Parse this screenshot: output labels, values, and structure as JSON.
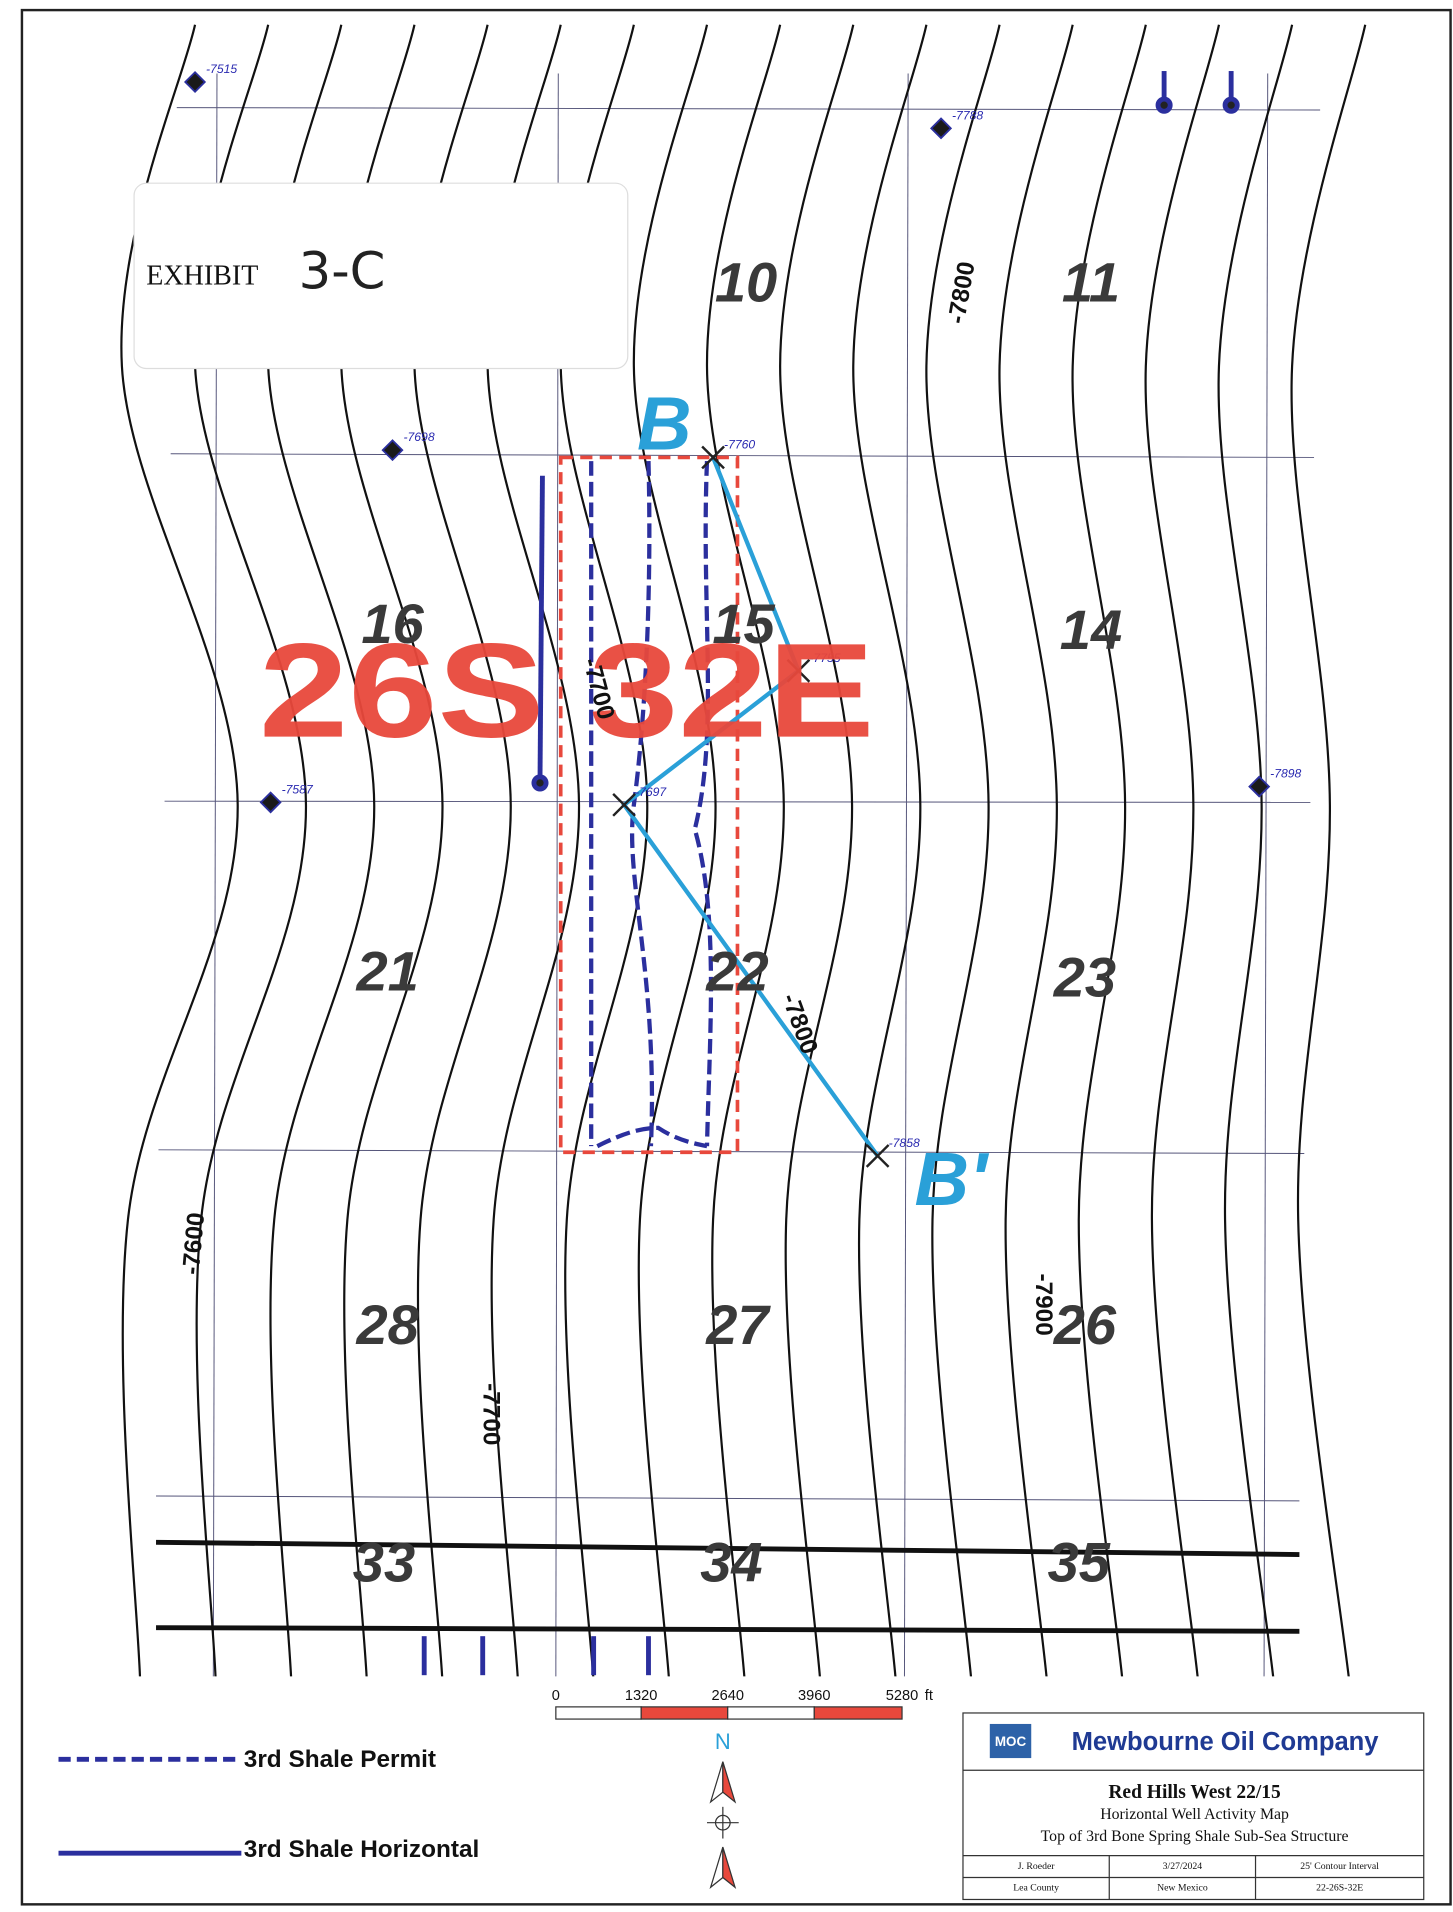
{
  "exhibit": {
    "label": "EXHIBIT",
    "number": "3-C"
  },
  "township": "26S 32E",
  "sections": [
    "10",
    "11",
    "16",
    "15",
    "14",
    "21",
    "22",
    "23",
    "28",
    "27",
    "26",
    "33",
    "34",
    "35"
  ],
  "cross_section": {
    "start": "B",
    "end": "B'"
  },
  "contour_labels": [
    "-7800",
    "-7700",
    "-7800",
    "-7600",
    "-7700",
    "-7900"
  ],
  "wells": [
    "-7515",
    "-7788",
    "-7698",
    "-7760",
    "-7755",
    "-7587",
    "-7697",
    "-7898",
    "-7858"
  ],
  "scale_bar": {
    "ticks": [
      "0",
      "1320",
      "2640",
      "3960",
      "5280"
    ],
    "unit": "ft"
  },
  "north": "N",
  "legend": [
    "3rd Shale Permit",
    "3rd Shale Horizontal"
  ],
  "title_block": {
    "logo": "MOC",
    "company": "Mewbourne Oil Company",
    "title": "Red Hills West 22/15",
    "subtitle": "Horizontal Well Activity Map",
    "structure": "Top of 3rd Bone Spring Shale Sub-Sea Structure",
    "author": "J. Roeder",
    "date": "3/27/2024",
    "contour_interval": "25' Contour Interval",
    "county": "Lea County",
    "state": "New Mexico",
    "location": "22-26S-32E"
  }
}
